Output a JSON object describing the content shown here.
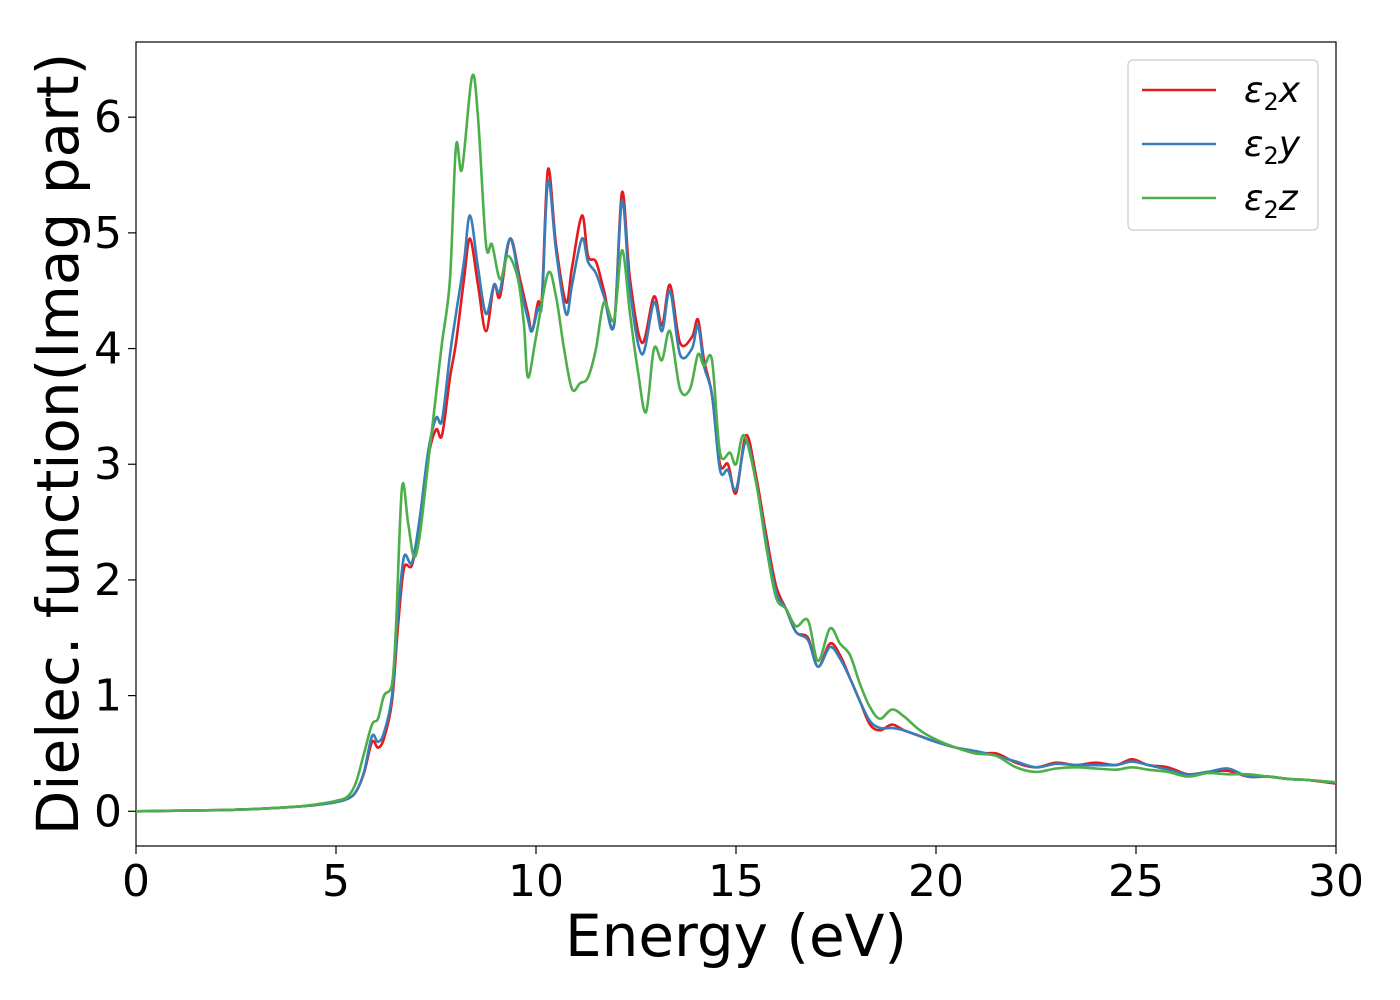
{
  "chart_data": {
    "type": "line",
    "title": "",
    "xlabel": "Energy (eV)",
    "ylabel": "Dielec. function(Imag part)",
    "xlim": [
      0,
      30
    ],
    "ylim": [
      -0.3,
      6.65
    ],
    "xticks": [
      0,
      5,
      10,
      15,
      20,
      25,
      30
    ],
    "xtick_labels": [
      "0",
      "5",
      "10",
      "15",
      "20",
      "25",
      "30"
    ],
    "yticks": [
      0,
      1,
      2,
      3,
      4,
      5,
      6
    ],
    "ytick_labels": [
      "0",
      "1",
      "2",
      "3",
      "4",
      "5",
      "6"
    ],
    "grid": false,
    "legend_position": "top-right",
    "series": [
      {
        "name": "ε2x",
        "label_main": "ε",
        "label_sub": "2",
        "label_suffix": "x",
        "color": "#e41a1c",
        "points": [
          [
            0,
            0
          ],
          [
            1,
            0.005
          ],
          [
            2,
            0.01
          ],
          [
            3,
            0.02
          ],
          [
            4,
            0.04
          ],
          [
            4.5,
            0.055
          ],
          [
            5,
            0.08
          ],
          [
            5.3,
            0.11
          ],
          [
            5.5,
            0.17
          ],
          [
            5.7,
            0.33
          ],
          [
            5.9,
            0.6
          ],
          [
            6.05,
            0.55
          ],
          [
            6.2,
            0.63
          ],
          [
            6.4,
            0.95
          ],
          [
            6.55,
            1.6
          ],
          [
            6.7,
            2.1
          ],
          [
            6.9,
            2.13
          ],
          [
            7.1,
            2.5
          ],
          [
            7.3,
            3.05
          ],
          [
            7.5,
            3.3
          ],
          [
            7.65,
            3.25
          ],
          [
            7.85,
            3.75
          ],
          [
            8.0,
            4.05
          ],
          [
            8.2,
            4.6
          ],
          [
            8.35,
            4.95
          ],
          [
            8.55,
            4.55
          ],
          [
            8.75,
            4.15
          ],
          [
            8.95,
            4.55
          ],
          [
            9.1,
            4.45
          ],
          [
            9.35,
            4.95
          ],
          [
            9.6,
            4.6
          ],
          [
            9.8,
            4.3
          ],
          [
            9.9,
            4.15
          ],
          [
            10.05,
            4.4
          ],
          [
            10.15,
            4.45
          ],
          [
            10.3,
            5.55
          ],
          [
            10.5,
            4.9
          ],
          [
            10.75,
            4.4
          ],
          [
            10.9,
            4.7
          ],
          [
            11.15,
            5.15
          ],
          [
            11.3,
            4.8
          ],
          [
            11.5,
            4.75
          ],
          [
            11.7,
            4.5
          ],
          [
            11.95,
            4.2
          ],
          [
            12.15,
            5.35
          ],
          [
            12.35,
            4.6
          ],
          [
            12.65,
            4.05
          ],
          [
            12.95,
            4.45
          ],
          [
            13.15,
            4.2
          ],
          [
            13.35,
            4.55
          ],
          [
            13.6,
            4.05
          ],
          [
            13.9,
            4.1
          ],
          [
            14.05,
            4.25
          ],
          [
            14.2,
            3.9
          ],
          [
            14.4,
            3.6
          ],
          [
            14.6,
            3.0
          ],
          [
            14.8,
            3.0
          ],
          [
            15.0,
            2.75
          ],
          [
            15.25,
            3.25
          ],
          [
            15.5,
            2.9
          ],
          [
            15.75,
            2.4
          ],
          [
            16.0,
            1.95
          ],
          [
            16.25,
            1.75
          ],
          [
            16.5,
            1.55
          ],
          [
            16.8,
            1.5
          ],
          [
            17.05,
            1.25
          ],
          [
            17.35,
            1.45
          ],
          [
            17.6,
            1.35
          ],
          [
            17.85,
            1.15
          ],
          [
            18.1,
            0.95
          ],
          [
            18.35,
            0.75
          ],
          [
            18.6,
            0.7
          ],
          [
            18.9,
            0.75
          ],
          [
            19.2,
            0.7
          ],
          [
            19.6,
            0.65
          ],
          [
            20,
            0.6
          ],
          [
            20.5,
            0.55
          ],
          [
            21,
            0.5
          ],
          [
            21.5,
            0.5
          ],
          [
            22,
            0.42
          ],
          [
            22.5,
            0.38
          ],
          [
            23,
            0.42
          ],
          [
            23.5,
            0.4
          ],
          [
            24,
            0.42
          ],
          [
            24.5,
            0.4
          ],
          [
            24.9,
            0.45
          ],
          [
            25.3,
            0.4
          ],
          [
            25.8,
            0.38
          ],
          [
            26.3,
            0.32
          ],
          [
            26.8,
            0.34
          ],
          [
            27.3,
            0.35
          ],
          [
            27.8,
            0.3
          ],
          [
            28.3,
            0.3
          ],
          [
            28.8,
            0.28
          ],
          [
            29.3,
            0.27
          ],
          [
            30,
            0.24
          ]
        ]
      },
      {
        "name": "ε2y",
        "label_main": "ε",
        "label_sub": "2",
        "label_suffix": "y",
        "color": "#377eb8",
        "points": [
          [
            0,
            0
          ],
          [
            1,
            0.005
          ],
          [
            2,
            0.01
          ],
          [
            3,
            0.02
          ],
          [
            4,
            0.04
          ],
          [
            4.5,
            0.055
          ],
          [
            5,
            0.08
          ],
          [
            5.3,
            0.11
          ],
          [
            5.5,
            0.17
          ],
          [
            5.7,
            0.34
          ],
          [
            5.9,
            0.65
          ],
          [
            6.05,
            0.6
          ],
          [
            6.2,
            0.68
          ],
          [
            6.4,
            1.0
          ],
          [
            6.55,
            1.7
          ],
          [
            6.7,
            2.2
          ],
          [
            6.9,
            2.15
          ],
          [
            7.1,
            2.55
          ],
          [
            7.3,
            3.1
          ],
          [
            7.5,
            3.4
          ],
          [
            7.65,
            3.38
          ],
          [
            7.85,
            3.95
          ],
          [
            8.0,
            4.3
          ],
          [
            8.2,
            4.75
          ],
          [
            8.35,
            5.15
          ],
          [
            8.55,
            4.7
          ],
          [
            8.75,
            4.3
          ],
          [
            8.95,
            4.55
          ],
          [
            9.1,
            4.5
          ],
          [
            9.35,
            4.95
          ],
          [
            9.6,
            4.55
          ],
          [
            9.8,
            4.25
          ],
          [
            9.9,
            4.15
          ],
          [
            10.05,
            4.35
          ],
          [
            10.15,
            4.4
          ],
          [
            10.3,
            5.45
          ],
          [
            10.5,
            4.85
          ],
          [
            10.75,
            4.3
          ],
          [
            10.9,
            4.55
          ],
          [
            11.15,
            4.95
          ],
          [
            11.3,
            4.75
          ],
          [
            11.5,
            4.65
          ],
          [
            11.7,
            4.45
          ],
          [
            11.95,
            4.2
          ],
          [
            12.15,
            5.28
          ],
          [
            12.35,
            4.5
          ],
          [
            12.65,
            3.95
          ],
          [
            12.95,
            4.4
          ],
          [
            13.15,
            4.15
          ],
          [
            13.35,
            4.5
          ],
          [
            13.6,
            3.95
          ],
          [
            13.9,
            4.0
          ],
          [
            14.05,
            4.2
          ],
          [
            14.2,
            3.85
          ],
          [
            14.4,
            3.6
          ],
          [
            14.6,
            2.95
          ],
          [
            14.8,
            2.95
          ],
          [
            15.0,
            2.78
          ],
          [
            15.25,
            3.2
          ],
          [
            15.5,
            2.85
          ],
          [
            15.75,
            2.35
          ],
          [
            16.0,
            1.9
          ],
          [
            16.25,
            1.75
          ],
          [
            16.5,
            1.55
          ],
          [
            16.8,
            1.48
          ],
          [
            17.05,
            1.25
          ],
          [
            17.35,
            1.42
          ],
          [
            17.6,
            1.32
          ],
          [
            17.85,
            1.15
          ],
          [
            18.1,
            0.95
          ],
          [
            18.35,
            0.78
          ],
          [
            18.6,
            0.72
          ],
          [
            18.9,
            0.72
          ],
          [
            19.2,
            0.7
          ],
          [
            19.6,
            0.65
          ],
          [
            20,
            0.6
          ],
          [
            20.5,
            0.55
          ],
          [
            21,
            0.52
          ],
          [
            21.5,
            0.48
          ],
          [
            22,
            0.43
          ],
          [
            22.5,
            0.38
          ],
          [
            23,
            0.41
          ],
          [
            23.5,
            0.4
          ],
          [
            24,
            0.4
          ],
          [
            24.5,
            0.4
          ],
          [
            24.9,
            0.43
          ],
          [
            25.3,
            0.4
          ],
          [
            25.8,
            0.36
          ],
          [
            26.3,
            0.32
          ],
          [
            26.8,
            0.34
          ],
          [
            27.3,
            0.37
          ],
          [
            27.8,
            0.3
          ],
          [
            28.3,
            0.3
          ],
          [
            28.8,
            0.28
          ],
          [
            29.3,
            0.27
          ],
          [
            30,
            0.25
          ]
        ]
      },
      {
        "name": "ε2z",
        "label_main": "ε",
        "label_sub": "2",
        "label_suffix": "z",
        "color": "#4daf4a",
        "points": [
          [
            0,
            0
          ],
          [
            1,
            0.005
          ],
          [
            2,
            0.01
          ],
          [
            3,
            0.02
          ],
          [
            4,
            0.04
          ],
          [
            4.5,
            0.06
          ],
          [
            5,
            0.09
          ],
          [
            5.3,
            0.13
          ],
          [
            5.5,
            0.25
          ],
          [
            5.7,
            0.5
          ],
          [
            5.9,
            0.75
          ],
          [
            6.05,
            0.8
          ],
          [
            6.2,
            1.0
          ],
          [
            6.4,
            1.1
          ],
          [
            6.5,
            1.6
          ],
          [
            6.65,
            2.8
          ],
          [
            6.8,
            2.5
          ],
          [
            6.95,
            2.2
          ],
          [
            7.1,
            2.4
          ],
          [
            7.3,
            3.0
          ],
          [
            7.5,
            3.6
          ],
          [
            7.65,
            4.05
          ],
          [
            7.85,
            4.6
          ],
          [
            8.0,
            5.75
          ],
          [
            8.15,
            5.55
          ],
          [
            8.4,
            6.35
          ],
          [
            8.55,
            6.0
          ],
          [
            8.75,
            4.9
          ],
          [
            8.9,
            4.9
          ],
          [
            9.1,
            4.6
          ],
          [
            9.3,
            4.8
          ],
          [
            9.55,
            4.6
          ],
          [
            9.7,
            4.2
          ],
          [
            9.8,
            3.75
          ],
          [
            10.0,
            4.1
          ],
          [
            10.3,
            4.65
          ],
          [
            10.5,
            4.45
          ],
          [
            10.7,
            4.0
          ],
          [
            10.9,
            3.65
          ],
          [
            11.1,
            3.7
          ],
          [
            11.3,
            3.75
          ],
          [
            11.5,
            4.0
          ],
          [
            11.7,
            4.4
          ],
          [
            11.95,
            4.25
          ],
          [
            12.15,
            4.85
          ],
          [
            12.35,
            4.3
          ],
          [
            12.55,
            3.8
          ],
          [
            12.75,
            3.45
          ],
          [
            12.95,
            4.0
          ],
          [
            13.15,
            3.9
          ],
          [
            13.35,
            4.15
          ],
          [
            13.6,
            3.65
          ],
          [
            13.85,
            3.65
          ],
          [
            14.05,
            3.95
          ],
          [
            14.2,
            3.85
          ],
          [
            14.4,
            3.9
          ],
          [
            14.6,
            3.1
          ],
          [
            14.85,
            3.1
          ],
          [
            15.0,
            3.0
          ],
          [
            15.2,
            3.25
          ],
          [
            15.5,
            2.85
          ],
          [
            15.75,
            2.3
          ],
          [
            16.0,
            1.85
          ],
          [
            16.25,
            1.75
          ],
          [
            16.5,
            1.6
          ],
          [
            16.8,
            1.65
          ],
          [
            17.05,
            1.3
          ],
          [
            17.35,
            1.58
          ],
          [
            17.6,
            1.45
          ],
          [
            17.85,
            1.35
          ],
          [
            18.1,
            1.1
          ],
          [
            18.35,
            0.9
          ],
          [
            18.6,
            0.8
          ],
          [
            18.9,
            0.88
          ],
          [
            19.2,
            0.82
          ],
          [
            19.6,
            0.7
          ],
          [
            20,
            0.62
          ],
          [
            20.5,
            0.55
          ],
          [
            21,
            0.5
          ],
          [
            21.5,
            0.48
          ],
          [
            22,
            0.38
          ],
          [
            22.5,
            0.34
          ],
          [
            23,
            0.37
          ],
          [
            23.5,
            0.38
          ],
          [
            24,
            0.37
          ],
          [
            24.5,
            0.36
          ],
          [
            24.9,
            0.38
          ],
          [
            25.3,
            0.36
          ],
          [
            25.8,
            0.34
          ],
          [
            26.3,
            0.3
          ],
          [
            26.8,
            0.33
          ],
          [
            27.3,
            0.32
          ],
          [
            27.8,
            0.32
          ],
          [
            28.3,
            0.3
          ],
          [
            28.8,
            0.28
          ],
          [
            29.3,
            0.27
          ],
          [
            30,
            0.25
          ]
        ]
      }
    ]
  }
}
